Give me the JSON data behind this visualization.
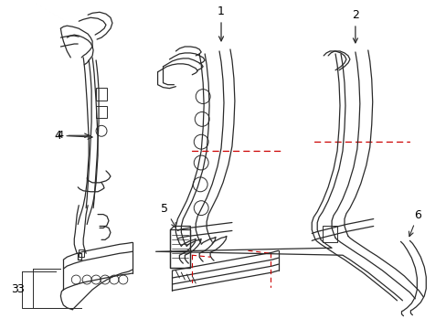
{
  "bg_color": "#ffffff",
  "line_color": "#2a2a2a",
  "red_color": "#cc0000",
  "label_color": "#000000",
  "figsize": [
    4.89,
    3.6
  ],
  "dpi": 100
}
